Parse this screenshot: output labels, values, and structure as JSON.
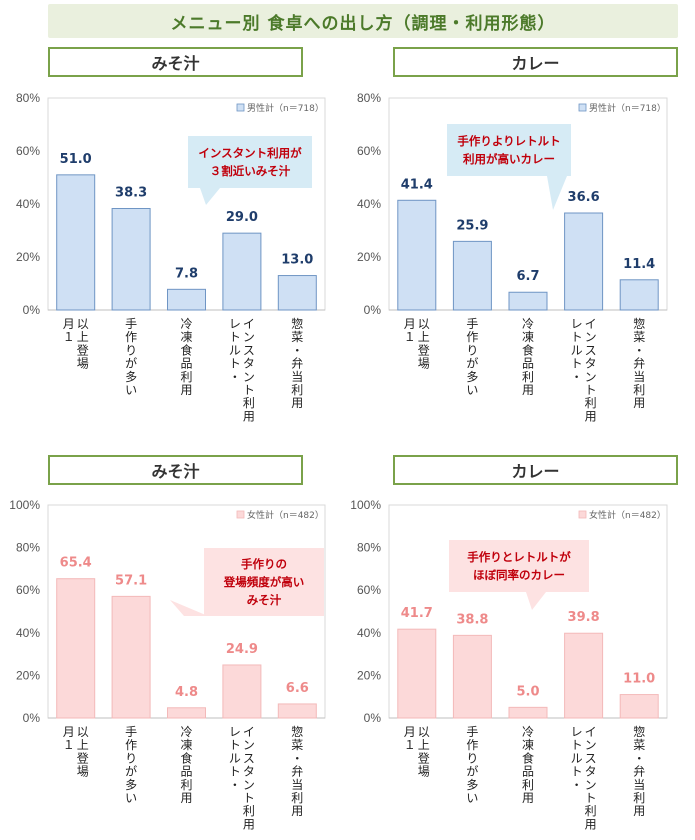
{
  "page": {
    "title": "メニュー別 食卓への出し方（調理・利用形態）"
  },
  "colors": {
    "male_fill": "#cfe0f4",
    "male_stroke": "#6f95c4",
    "male_label": "#1f3d6b",
    "female_fill": "#fcd9d9",
    "female_stroke": "#f3b9b9",
    "female_label": "#ee8a8a",
    "ann_blue": "#d6ebf5",
    "ann_pink": "#fde2e2",
    "ann_text": "#c0000c"
  },
  "chart_data": [
    {
      "type": "bar",
      "panel_title": "みそ汁",
      "legend": "男性計（n＝718）",
      "categories": [
        [
          "月１",
          "以上登場"
        ],
        [
          "手作りが多い"
        ],
        [
          "冷凍食品利用"
        ],
        [
          "レトルト・",
          "インスタント利用"
        ],
        [
          "惣菜・弁当利用"
        ]
      ],
      "values": [
        51.0,
        38.3,
        7.8,
        29.0,
        13.0
      ],
      "ylim": [
        0,
        80
      ],
      "yticks": [
        "0%",
        "20%",
        "40%",
        "60%",
        "80%"
      ],
      "annotation": [
        "インスタント利用が",
        "３割近いみそ汁"
      ],
      "theme": "male"
    },
    {
      "type": "bar",
      "panel_title": "カレー",
      "legend": "男性計（n＝718）",
      "categories": [
        [
          "月１",
          "以上登場"
        ],
        [
          "手作りが多い"
        ],
        [
          "冷凍食品利用"
        ],
        [
          "レトルト・",
          "インスタント利用"
        ],
        [
          "惣菜・弁当利用"
        ]
      ],
      "values": [
        41.4,
        25.9,
        6.7,
        36.6,
        11.4
      ],
      "ylim": [
        0,
        80
      ],
      "yticks": [
        "0%",
        "20%",
        "40%",
        "60%",
        "80%"
      ],
      "annotation": [
        "手作りよりレトルト",
        "利用が高いカレー"
      ],
      "theme": "male"
    },
    {
      "type": "bar",
      "panel_title": "みそ汁",
      "legend": "女性計（n＝482）",
      "categories": [
        [
          "月１",
          "以上登場"
        ],
        [
          "手作りが多い"
        ],
        [
          "冷凍食品利用"
        ],
        [
          "レトルト・",
          "インスタント利用"
        ],
        [
          "惣菜・弁当利用"
        ]
      ],
      "values": [
        65.4,
        57.1,
        4.8,
        24.9,
        6.6
      ],
      "ylim": [
        0,
        100
      ],
      "yticks": [
        "0%",
        "20%",
        "40%",
        "60%",
        "80%",
        "100%"
      ],
      "annotation": [
        "手作りの",
        "登場頻度が高い",
        "みそ汁"
      ],
      "theme": "female"
    },
    {
      "type": "bar",
      "panel_title": "カレー",
      "legend": "女性計（n＝482）",
      "categories": [
        [
          "月１",
          "以上登場"
        ],
        [
          "手作りが多い"
        ],
        [
          "冷凍食品利用"
        ],
        [
          "レトルト・",
          "インスタント利用"
        ],
        [
          "惣菜・弁当利用"
        ]
      ],
      "values": [
        41.7,
        38.8,
        5.0,
        39.8,
        11.0
      ],
      "ylim": [
        0,
        100
      ],
      "yticks": [
        "0%",
        "20%",
        "40%",
        "60%",
        "80%",
        "100%"
      ],
      "annotation": [
        "手作りとレトルトが",
        "ほぼ同率のカレー"
      ],
      "theme": "female"
    }
  ]
}
